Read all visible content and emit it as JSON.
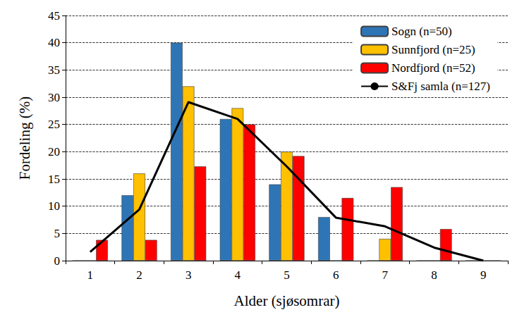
{
  "chart_data": {
    "type": "bar",
    "x_label": "Alder (sjøsomrar)",
    "y_label": "Fordeling (%)",
    "categories": [
      "1",
      "2",
      "3",
      "4",
      "5",
      "6",
      "7",
      "8",
      "9"
    ],
    "series": [
      {
        "name": "Sogn (n=50)",
        "color": "#2e75b6",
        "values": [
          0,
          12,
          40,
          26,
          14,
          8,
          0,
          0,
          0
        ]
      },
      {
        "name": "Sunnfjord (n=25)",
        "color": "#ffc000",
        "values": [
          0,
          16,
          32,
          28,
          20,
          0,
          4,
          0,
          0
        ]
      },
      {
        "name": "Nordfjord (n=52)",
        "color": "#ff0000",
        "values": [
          3.8,
          3.8,
          17.3,
          25,
          19.2,
          11.5,
          13.5,
          5.8,
          0
        ]
      },
      {
        "name": "S&Fj samla (n=127)",
        "type": "line",
        "color": "#000000",
        "values": [
          1.6,
          9.4,
          29.1,
          26,
          17.3,
          7.9,
          6.3,
          2.4,
          0
        ]
      }
    ],
    "ylim": [
      0,
      45
    ],
    "yticks": [
      0,
      5,
      10,
      15,
      20,
      25,
      30,
      35,
      40,
      45
    ],
    "grid": true,
    "legend": "upper right"
  }
}
